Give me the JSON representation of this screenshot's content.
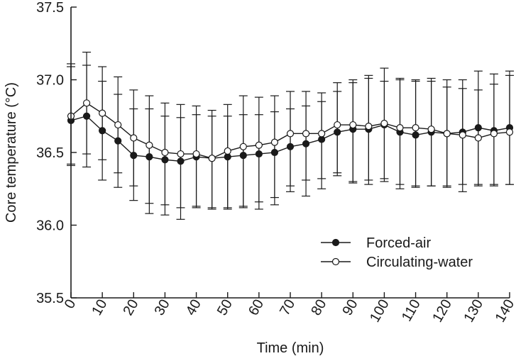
{
  "chart_data": {
    "type": "line",
    "title": "",
    "xlabel": "Time (min)",
    "ylabel": "Core temperature (°C)",
    "xlim": [
      0,
      140
    ],
    "ylim": [
      35.5,
      37.5
    ],
    "grid": false,
    "x_ticks": [
      0,
      10,
      20,
      30,
      40,
      50,
      60,
      70,
      80,
      90,
      100,
      110,
      120,
      130,
      140
    ],
    "y_ticks": [
      35.5,
      36.0,
      36.5,
      37.0,
      37.5
    ],
    "x_tick_labels": [
      "0",
      "10",
      "20",
      "30",
      "40",
      "50",
      "60",
      "70",
      "80",
      "90",
      "100",
      "110",
      "120",
      "130",
      "140"
    ],
    "y_tick_labels": [
      "35.5",
      "36.0",
      "36.5",
      "37.0",
      "37.5"
    ],
    "legend_position": "lower-right",
    "x": [
      0,
      5,
      10,
      15,
      20,
      25,
      30,
      35,
      40,
      45,
      50,
      55,
      60,
      65,
      70,
      75,
      80,
      85,
      90,
      95,
      100,
      105,
      110,
      115,
      120,
      125,
      130,
      135,
      140
    ],
    "series": [
      {
        "name": "Forced-air",
        "marker": "filled",
        "color": "#1a1a1a",
        "values": [
          36.72,
          36.75,
          36.65,
          36.58,
          36.48,
          36.47,
          36.45,
          36.44,
          36.47,
          36.46,
          36.47,
          36.48,
          36.49,
          36.5,
          36.54,
          36.56,
          36.59,
          36.64,
          36.66,
          36.66,
          36.69,
          36.64,
          36.62,
          36.64,
          36.63,
          36.64,
          36.67,
          36.65,
          36.67
        ],
        "error_upper": [
          37.11,
          37.1,
          36.99,
          36.9,
          36.8,
          36.8,
          36.75,
          36.74,
          36.76,
          36.75,
          36.75,
          36.76,
          36.76,
          36.78,
          36.8,
          36.82,
          36.85,
          36.92,
          37.0,
          37.01,
          37.08,
          37.01,
          36.99,
          37.01,
          37.0,
          37.0,
          37.06,
          37.04,
          37.06
        ],
        "error_lower": [
          36.42,
          36.4,
          36.31,
          36.26,
          36.17,
          36.15,
          36.14,
          36.12,
          36.12,
          36.11,
          36.11,
          36.12,
          36.11,
          36.14,
          36.23,
          36.2,
          36.25,
          36.34,
          36.29,
          36.28,
          36.3,
          36.25,
          36.26,
          36.27,
          36.26,
          36.28,
          36.28,
          36.27,
          36.28
        ]
      },
      {
        "name": "Circulating-water",
        "marker": "open",
        "color": "#1a1a1a",
        "values": [
          36.75,
          36.84,
          36.77,
          36.69,
          36.6,
          36.55,
          36.5,
          36.49,
          36.49,
          36.46,
          36.51,
          36.54,
          36.55,
          36.57,
          36.63,
          36.63,
          36.63,
          36.69,
          36.69,
          36.68,
          36.7,
          36.67,
          36.67,
          36.66,
          36.63,
          36.62,
          36.6,
          36.63,
          36.64
        ],
        "error_upper": [
          37.09,
          37.19,
          37.09,
          37.02,
          36.93,
          36.89,
          36.84,
          36.83,
          36.82,
          36.79,
          36.83,
          36.89,
          36.88,
          36.89,
          36.92,
          36.92,
          36.91,
          36.98,
          36.98,
          37.03,
          36.99,
          37.0,
          37.0,
          36.99,
          36.95,
          36.94,
          36.93,
          36.97,
          37.03
        ],
        "error_lower": [
          36.41,
          36.49,
          36.45,
          36.36,
          36.27,
          36.08,
          36.07,
          36.04,
          36.13,
          36.12,
          36.12,
          36.13,
          36.16,
          36.19,
          36.27,
          36.31,
          36.32,
          36.36,
          36.3,
          36.31,
          36.32,
          36.28,
          36.27,
          36.27,
          36.27,
          36.23,
          36.27,
          36.28,
          36.28
        ]
      }
    ]
  }
}
